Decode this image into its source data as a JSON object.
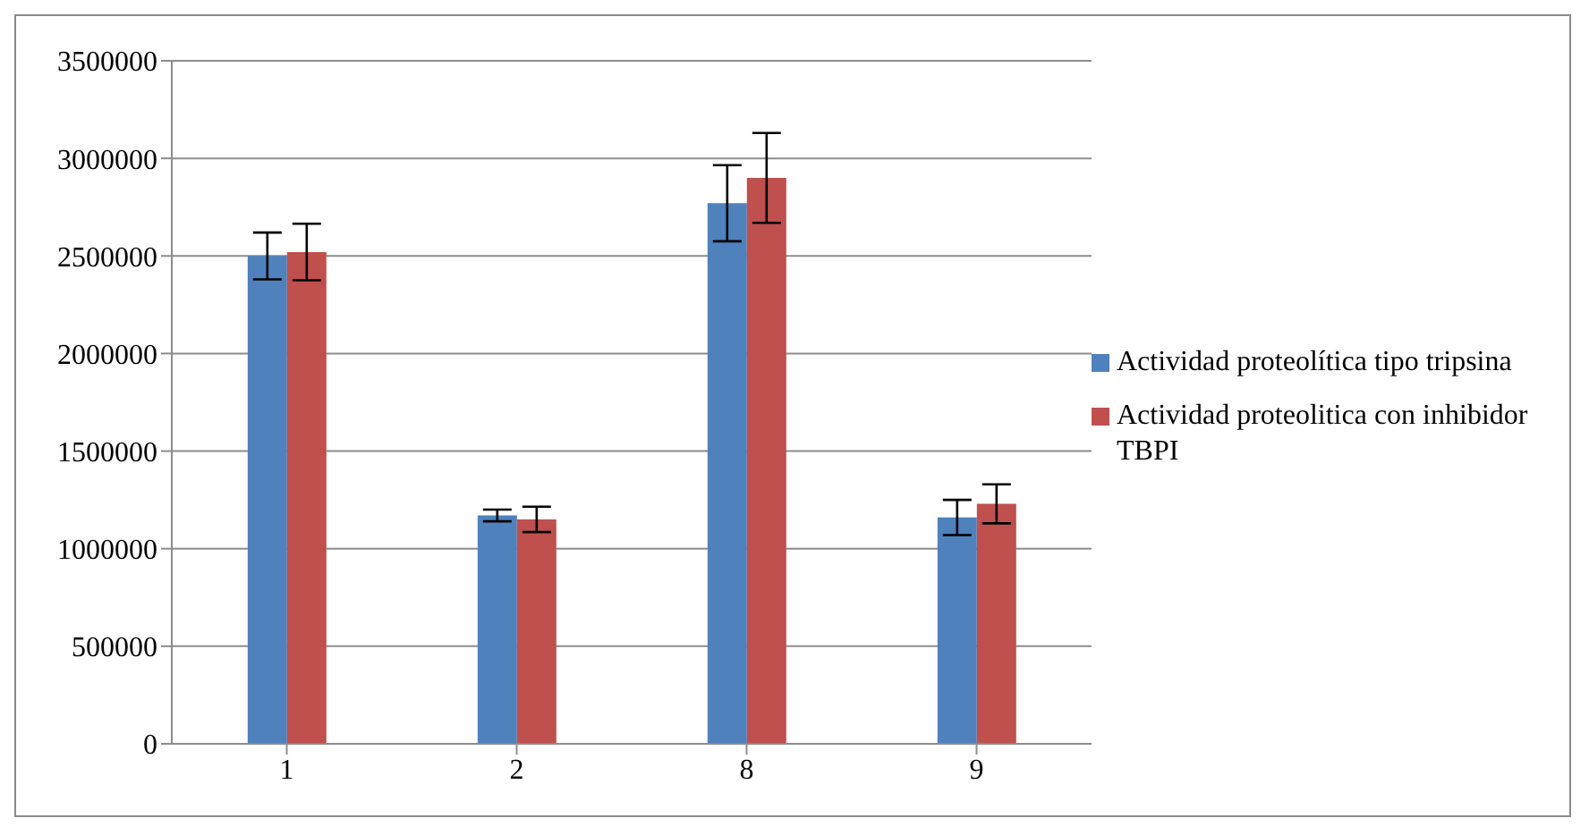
{
  "chart_data": {
    "type": "bar",
    "categories": [
      "1",
      "2",
      "8",
      "9"
    ],
    "series": [
      {
        "name": "Actividad proteolítica tipo tripsina",
        "color": "#4f81bd",
        "values": [
          2500000,
          1170000,
          2770000,
          1160000
        ],
        "errors": [
          120000,
          30000,
          195000,
          90000
        ]
      },
      {
        "name": "Actividad proteolitica con inhibidor TBPI",
        "color": "#c0504d",
        "values": [
          2520000,
          1150000,
          2900000,
          1230000
        ],
        "errors": [
          145000,
          65000,
          230000,
          100000
        ]
      }
    ],
    "ylim": [
      0,
      3500000
    ],
    "yticks": [
      0,
      500000,
      1000000,
      1500000,
      2000000,
      2500000,
      3000000,
      3500000
    ],
    "grid": "y",
    "legend": "right"
  }
}
